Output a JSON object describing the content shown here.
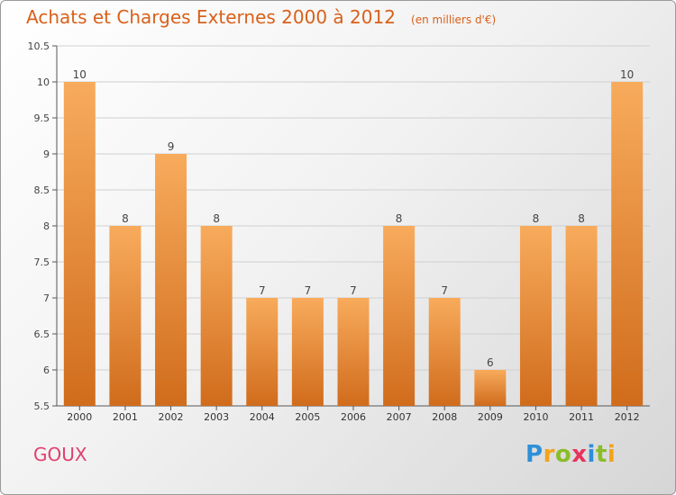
{
  "header": {
    "title": "Achats et Charges Externes 2000 à 2012",
    "subtitle": "(en milliers d'€)"
  },
  "footer": {
    "commune": "GOUX",
    "brand_letters": [
      "P",
      "r",
      "o",
      "x",
      "i",
      "t",
      "i"
    ]
  },
  "colors": {
    "title": "#d9601a",
    "commune": "#e04070",
    "bar_top": "#f8ab5c",
    "bar_bottom": "#d06c1c",
    "brand": [
      "#2e8fd8",
      "#f2a31b",
      "#8bbd2a",
      "#e8335d",
      "#2e8fd8",
      "#8bbd2a",
      "#f2a31b"
    ]
  },
  "chart_data": {
    "type": "bar",
    "title": "Achats et Charges Externes 2000 à 2012",
    "subtitle": "(en milliers d'€)",
    "categories": [
      "2000",
      "2001",
      "2002",
      "2003",
      "2004",
      "2005",
      "2006",
      "2007",
      "2008",
      "2009",
      "2010",
      "2011",
      "2012"
    ],
    "values": [
      10,
      8,
      9,
      8,
      7,
      7,
      7,
      8,
      7,
      6,
      8,
      8,
      10
    ],
    "ylim": [
      5.5,
      10.5
    ],
    "yticks": [
      "5.5",
      "6",
      "6.5",
      "7",
      "7.5",
      "8",
      "8.5",
      "9",
      "9.5",
      "10",
      "10.5"
    ],
    "grid": true,
    "xlabel": "",
    "ylabel": ""
  }
}
